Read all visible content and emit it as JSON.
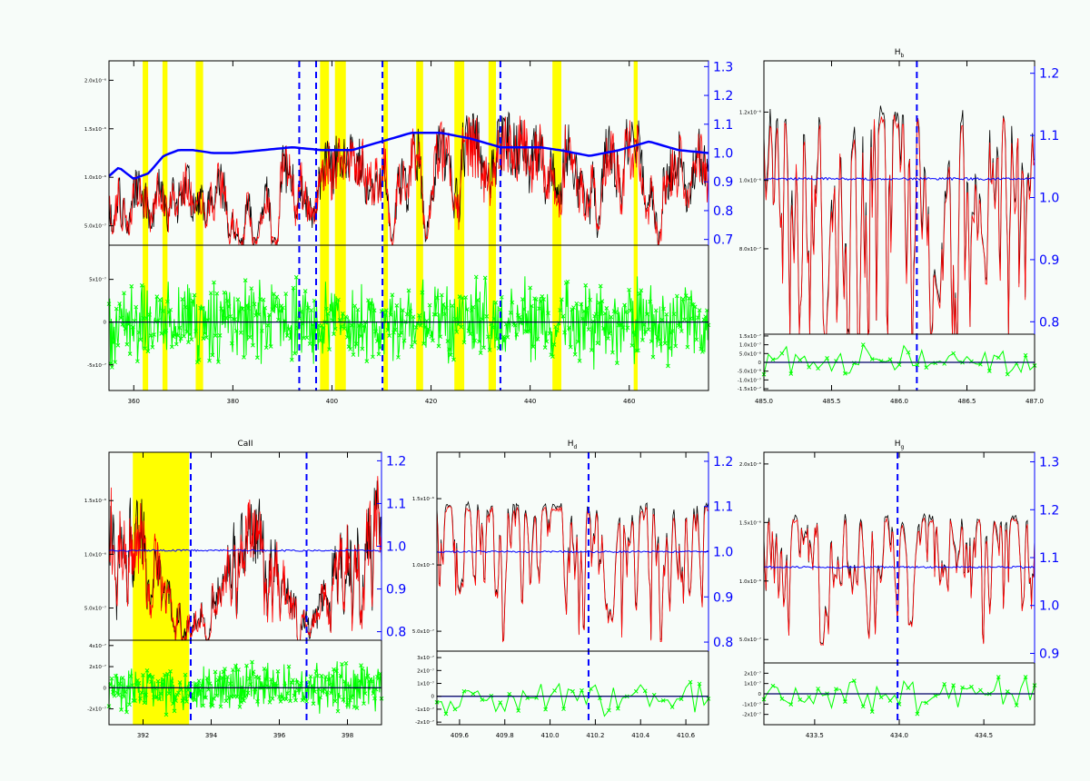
{
  "colors": {
    "background": "#f7fcf9",
    "observed": "#000000",
    "model": "#ff0000",
    "normalization": "#0000ff",
    "residuals": "#00ff00",
    "mask": "#ffff00",
    "marker": "#0000ff"
  },
  "chart_data": [
    {
      "id": "full",
      "type": "line",
      "title": "",
      "xlim": [
        355,
        476
      ],
      "ylim": [
        3e-07,
        2.2e-06
      ],
      "ytick_values": [
        5e-07,
        1e-06,
        1.5e-06,
        2e-06
      ],
      "ytick_labels": [
        "5.0x10⁻⁷",
        "1.0x10⁻⁶",
        "1.5x10⁻⁶",
        "2.0x10⁻⁶"
      ],
      "y2lim": [
        0.68,
        1.32
      ],
      "y2tick_values": [
        0.7,
        0.8,
        0.9,
        1.0,
        1.1,
        1.2,
        1.3
      ],
      "y2tick_labels": [
        "0.7",
        "0.8",
        "0.9",
        "1.0",
        "1.1",
        "1.2",
        "1.3"
      ],
      "rlim": [
        -8e-07,
        9e-07
      ],
      "rtick_values": [
        -5e-07,
        0,
        5e-07
      ],
      "rtick_labels": [
        "-5x10⁻⁷",
        "0",
        "5x10⁻⁷"
      ],
      "xtick_values": [
        360,
        380,
        400,
        420,
        440,
        460
      ],
      "xtick_labels": [
        "360",
        "380",
        "400",
        "420",
        "440",
        "460"
      ],
      "masks": [
        [
          361.8,
          362.9
        ],
        [
          365.8,
          366.8
        ],
        [
          372.5,
          374.0
        ],
        [
          397.6,
          399.4
        ],
        [
          400.6,
          402.8
        ],
        [
          410.4,
          411.3
        ],
        [
          417.0,
          418.4
        ],
        [
          424.7,
          426.7
        ],
        [
          431.6,
          433.1
        ],
        [
          444.5,
          446.3
        ],
        [
          460.9,
          461.7
        ]
      ],
      "markers": [
        393.4,
        396.8,
        410.2,
        434.0,
        486.1
      ],
      "spectrum_level": 1.35e-06,
      "normalization": {
        "x": [
          355,
          357,
          360,
          363,
          366,
          369,
          372,
          376,
          380,
          386,
          392,
          398,
          404,
          410,
          416,
          422,
          428,
          434,
          438,
          442,
          446,
          452,
          458,
          464,
          470,
          476
        ],
        "y": [
          0.92,
          0.95,
          0.91,
          0.93,
          0.99,
          1.01,
          1.01,
          1.0,
          1.0,
          1.01,
          1.02,
          1.01,
          1.01,
          1.04,
          1.07,
          1.07,
          1.05,
          1.02,
          1.02,
          1.02,
          1.01,
          0.99,
          1.01,
          1.04,
          1.01,
          1.0
        ]
      },
      "n_points": 900,
      "n_residual_points": 800
    },
    {
      "id": "hb",
      "type": "line",
      "title": "H<sub>b</sub>",
      "title_text": "H",
      "title_sub": "b",
      "xlim": [
        485.0,
        487.0
      ],
      "ylim": [
        5.5e-07,
        1.35e-06
      ],
      "ytick_values": [
        8e-07,
        1e-06,
        1.2e-06
      ],
      "ytick_labels": [
        "8.0x10⁻⁷",
        "1.0x10⁻⁶",
        "1.2x10⁻⁶"
      ],
      "y2lim": [
        0.78,
        1.22
      ],
      "y2tick_values": [
        0.8,
        0.9,
        1.0,
        1.1,
        1.2
      ],
      "y2tick_labels": [
        "0.8",
        "0.9",
        "1.0",
        "1.1",
        "1.2"
      ],
      "rlim": [
        -1.6e-07,
        1.6e-07
      ],
      "rtick_values": [
        1.5e-07,
        1e-07,
        5e-08,
        0,
        -5e-08,
        -1e-07,
        -1.5e-07
      ],
      "rtick_labels": [
        "1.5x10⁻⁷",
        "1.0x10⁻⁷",
        "5.0x10⁻⁸",
        "0",
        "-5.0x10⁻⁸",
        "-1.0x10⁻⁷",
        "-1.5x10⁻⁷"
      ],
      "xtick_values": [
        485.0,
        485.5,
        486.0,
        486.5,
        487.0
      ],
      "xtick_labels": [
        "485.0",
        "485.5",
        "486.0",
        "486.5",
        "487.0"
      ],
      "masks": [],
      "markers": [
        486.13
      ],
      "line_center": 486.28,
      "line_depth": 5e-07,
      "line_width": 0.06,
      "spectrum_level": 1.2e-06,
      "normalization_level": 1.03,
      "n_points": 260,
      "n_residual_points": 60
    },
    {
      "id": "caii",
      "type": "line",
      "title": "CaII",
      "xlim": [
        391.0,
        399.0
      ],
      "ylim": [
        2e-07,
        1.95e-06
      ],
      "ytick_values": [
        5e-07,
        1e-06,
        1.5e-06
      ],
      "ytick_labels": [
        "5.0x10⁻⁷",
        "1.0x10⁻⁶",
        "1.5x10⁻⁶"
      ],
      "y2lim": [
        0.78,
        1.22
      ],
      "y2tick_values": [
        0.8,
        0.9,
        1.0,
        1.1,
        1.2
      ],
      "y2tick_labels": [
        "0.8",
        "0.9",
        "1.0",
        "1.1",
        "1.2"
      ],
      "rlim": [
        -3.5e-07,
        4.5e-07
      ],
      "rtick_values": [
        4e-07,
        2e-07,
        0,
        -2e-07
      ],
      "rtick_labels": [
        "4x10⁻⁷",
        "2x10⁻⁷",
        "0",
        "-2x10⁻⁷"
      ],
      "xtick_values": [
        392,
        394,
        396,
        398
      ],
      "xtick_labels": [
        "392",
        "394",
        "396",
        "398"
      ],
      "masks": [
        [
          391.7,
          393.35
        ]
      ],
      "markers": [
        393.4,
        396.8
      ],
      "spectrum_level": 1.35e-06,
      "normalization_level": 0.99,
      "n_points": 500,
      "n_residual_points": 400
    },
    {
      "id": "hd",
      "type": "line",
      "title": "H<sub>d</sub>",
      "title_text": "H",
      "title_sub": "d",
      "xlim": [
        409.5,
        410.7
      ],
      "ylim": [
        3.5e-07,
        1.85e-06
      ],
      "ytick_values": [
        5e-07,
        1e-06,
        1.5e-06
      ],
      "ytick_labels": [
        "5.0x10⁻⁷",
        "1.0x10⁻⁶",
        "1.5x10⁻⁶"
      ],
      "y2lim": [
        0.78,
        1.22
      ],
      "y2tick_values": [
        0.8,
        0.9,
        1.0,
        1.1,
        1.2
      ],
      "y2tick_labels": [
        "0.8",
        "0.9",
        "1.0",
        "1.1",
        "1.2"
      ],
      "rlim": [
        -2.2e-07,
        3.5e-07
      ],
      "rtick_values": [
        3e-07,
        2e-07,
        1e-07,
        0,
        -1e-07,
        -2e-07
      ],
      "rtick_labels": [
        "3x10⁻⁷",
        "2x10⁻⁷",
        "1x10⁻⁷",
        "0",
        "-1x10⁻⁷",
        "-2x10⁻⁷"
      ],
      "xtick_values": [
        409.6,
        409.8,
        410.0,
        410.2,
        410.4,
        410.6
      ],
      "xtick_labels": [
        "409.6",
        "409.8",
        "410.0",
        "410.2",
        "410.4",
        "410.6"
      ],
      "masks": [],
      "markers": [
        410.17
      ],
      "line_center": 410.27,
      "line_depth": 7e-07,
      "line_width": 0.025,
      "spectrum_level": 1.45e-06,
      "normalization_level": 1.0,
      "n_points": 260,
      "n_residual_points": 60
    },
    {
      "id": "hg",
      "type": "line",
      "title": "H<sub>g</sub>",
      "title_text": "H",
      "title_sub": "g",
      "xlim": [
        433.2,
        434.8
      ],
      "ylim": [
        3e-07,
        2.1e-06
      ],
      "ytick_values": [
        5e-07,
        1e-06,
        1.5e-06,
        2e-06
      ],
      "ytick_labels": [
        "5.0x10⁻⁷",
        "1.0x10⁻⁶",
        "1.5x10⁻⁶",
        "2.0x10⁻⁶"
      ],
      "y2lim": [
        0.88,
        1.32
      ],
      "y2tick_values": [
        0.9,
        1.0,
        1.1,
        1.2,
        1.3
      ],
      "y2tick_labels": [
        "0.9",
        "1.0",
        "1.1",
        "1.2",
        "1.3"
      ],
      "rlim": [
        -3e-07,
        3e-07
      ],
      "rtick_values": [
        2e-07,
        1e-07,
        0,
        -1e-07,
        -2e-07
      ],
      "rtick_labels": [
        "2x10⁻⁷",
        "1x10⁻⁷",
        "0",
        "-1x10⁻⁷",
        "-2x10⁻⁷"
      ],
      "xtick_values": [
        433.5,
        434.0,
        434.5
      ],
      "xtick_labels": [
        "433.5",
        "434.0",
        "434.5"
      ],
      "masks": [],
      "markers": [
        433.99
      ],
      "line_center": 434.07,
      "line_depth": 7.5e-07,
      "line_width": 0.03,
      "spectrum_level": 1.55e-06,
      "normalization_level": 1.08,
      "n_points": 260,
      "n_residual_points": 60
    }
  ]
}
